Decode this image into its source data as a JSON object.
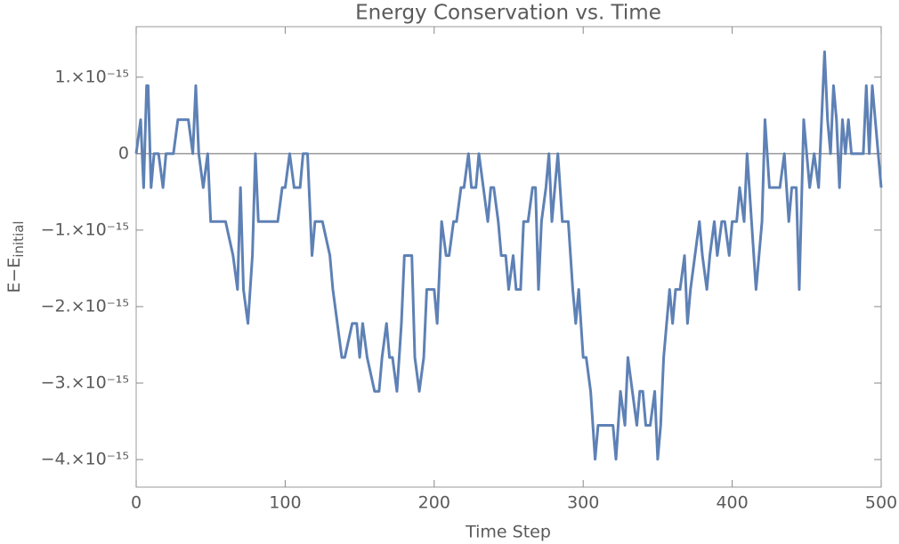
{
  "chart_data": {
    "type": "line",
    "title": "Energy Conservation vs. Time",
    "xlabel": "Time Step",
    "ylabel": "E−E",
    "ylabel_sub": "initial",
    "xlim": [
      0,
      500
    ],
    "ylim": [
      -4.36e-15,
      1.66e-15
    ],
    "xticks": [
      0,
      100,
      200,
      300,
      400,
      500
    ],
    "yticks": [
      {
        "value": 1e-15,
        "label": "1.×10⁻¹⁵"
      },
      0,
      {
        "value": -1e-15,
        "label": "−1.×10⁻¹⁵"
      },
      {
        "value": -2e-15,
        "label": "−2.×10⁻¹⁵"
      },
      {
        "value": -3e-15,
        "label": "−3.×10⁻¹⁵"
      },
      {
        "value": -4e-15,
        "label": "−4.×10⁻¹⁵"
      }
    ],
    "x": [
      0,
      3,
      5,
      7,
      8,
      10,
      12,
      15,
      18,
      20,
      25,
      28,
      30,
      35,
      38,
      40,
      42,
      45,
      48,
      50,
      55,
      60,
      65,
      68,
      70,
      72,
      75,
      78,
      80,
      82,
      85,
      90,
      95,
      98,
      100,
      103,
      106,
      110,
      112,
      115,
      118,
      120,
      125,
      130,
      132,
      135,
      138,
      140,
      145,
      148,
      150,
      152,
      155,
      160,
      163,
      165,
      168,
      170,
      172,
      175,
      178,
      180,
      185,
      187,
      190,
      193,
      195,
      200,
      202,
      205,
      208,
      210,
      213,
      215,
      218,
      220,
      223,
      225,
      228,
      230,
      233,
      236,
      238,
      240,
      243,
      245,
      248,
      250,
      253,
      255,
      258,
      260,
      263,
      266,
      268,
      270,
      272,
      275,
      277,
      279,
      281,
      283,
      286,
      290,
      293,
      295,
      297,
      300,
      302,
      305,
      308,
      310,
      312,
      316,
      320,
      322,
      325,
      328,
      330,
      333,
      336,
      338,
      340,
      342,
      345,
      348,
      350,
      352,
      354,
      356,
      358,
      360,
      362,
      365,
      368,
      370,
      372,
      375,
      378,
      380,
      383,
      385,
      388,
      390,
      393,
      395,
      398,
      400,
      403,
      405,
      408,
      410,
      413,
      416,
      420,
      422,
      425,
      428,
      432,
      435,
      438,
      440,
      443,
      445,
      448,
      450,
      452,
      455,
      458,
      460,
      462,
      464,
      466,
      468,
      470,
      472,
      474,
      476,
      478,
      480,
      484,
      488,
      490,
      492,
      494,
      496,
      498,
      500
    ],
    "series": [
      {
        "name": "E−E initial",
        "color": "#5e81b5",
        "values": [
          0,
          4.44e-16,
          -4.44e-16,
          8.88e-16,
          8.88e-16,
          -4.44e-16,
          0,
          0,
          -4.44e-16,
          0,
          0,
          4.44e-16,
          4.44e-16,
          4.44e-16,
          0,
          8.88e-16,
          0,
          -4.44e-16,
          0,
          -8.88e-16,
          -8.88e-16,
          -8.88e-16,
          -1.332e-15,
          -1.776e-15,
          -4.44e-16,
          -1.776e-15,
          -2.22e-15,
          -1.332e-15,
          0,
          -8.88e-16,
          -8.88e-16,
          -8.88e-16,
          -8.88e-16,
          -4.44e-16,
          -4.44e-16,
          0,
          -4.44e-16,
          -4.44e-16,
          0,
          0,
          -1.332e-15,
          -8.88e-16,
          -8.88e-16,
          -1.332e-15,
          -1.776e-15,
          -2.22e-15,
          -2.664e-15,
          -2.664e-15,
          -2.22e-15,
          -2.22e-15,
          -2.664e-15,
          -2.22e-15,
          -2.664e-15,
          -3.108e-15,
          -3.108e-15,
          -2.664e-15,
          -2.22e-15,
          -2.664e-15,
          -2.664e-15,
          -3.108e-15,
          -2.22e-15,
          -1.332e-15,
          -1.332e-15,
          -2.664e-15,
          -3.108e-15,
          -2.664e-15,
          -1.776e-15,
          -1.776e-15,
          -2.22e-15,
          -8.88e-16,
          -1.332e-15,
          -1.332e-15,
          -8.88e-16,
          -8.88e-16,
          -4.44e-16,
          -4.44e-16,
          0,
          -4.44e-16,
          -4.44e-16,
          0,
          -4.44e-16,
          -8.88e-16,
          -4.44e-16,
          -4.44e-16,
          -8.88e-16,
          -1.332e-15,
          -1.332e-15,
          -1.776e-15,
          -1.332e-15,
          -1.776e-15,
          -1.776e-15,
          -8.88e-16,
          -8.88e-16,
          -4.44e-16,
          -4.44e-16,
          -1.776e-15,
          -8.88e-16,
          -4.44e-16,
          0,
          -8.88e-16,
          -4.44e-16,
          0,
          -8.88e-16,
          -8.88e-16,
          -1.776e-15,
          -2.22e-15,
          -1.776e-15,
          -2.664e-15,
          -2.664e-15,
          -3.108e-15,
          -3.996e-15,
          -3.552e-15,
          -3.552e-15,
          -3.552e-15,
          -3.552e-15,
          -3.996e-15,
          -3.108e-15,
          -3.552e-15,
          -2.664e-15,
          -3.108e-15,
          -3.552e-15,
          -3.108e-15,
          -3.108e-15,
          -3.552e-15,
          -3.552e-15,
          -3.108e-15,
          -3.996e-15,
          -3.552e-15,
          -2.664e-15,
          -2.22e-15,
          -1.776e-15,
          -2.22e-15,
          -1.776e-15,
          -1.776e-15,
          -1.332e-15,
          -2.22e-15,
          -1.776e-15,
          -1.332e-15,
          -8.88e-16,
          -1.332e-15,
          -1.776e-15,
          -1.332e-15,
          -8.88e-16,
          -1.332e-15,
          -8.88e-16,
          -8.88e-16,
          -1.332e-15,
          -8.88e-16,
          -8.88e-16,
          -4.44e-16,
          -8.88e-16,
          0,
          -8.88e-16,
          -1.776e-15,
          -8.88e-16,
          4.44e-16,
          -4.44e-16,
          -4.44e-16,
          -4.44e-16,
          0,
          -8.88e-16,
          -4.44e-16,
          -4.44e-16,
          -1.776e-15,
          4.44e-16,
          0,
          -4.44e-16,
          0,
          -4.44e-16,
          4.44e-16,
          1.332e-15,
          4.44e-16,
          0,
          8.88e-16,
          4.44e-16,
          -4.44e-16,
          4.44e-16,
          0,
          4.44e-16,
          0,
          0,
          0,
          8.88e-16,
          0,
          8.88e-16,
          4.44e-16,
          0,
          -4.44e-16
        ]
      }
    ]
  }
}
